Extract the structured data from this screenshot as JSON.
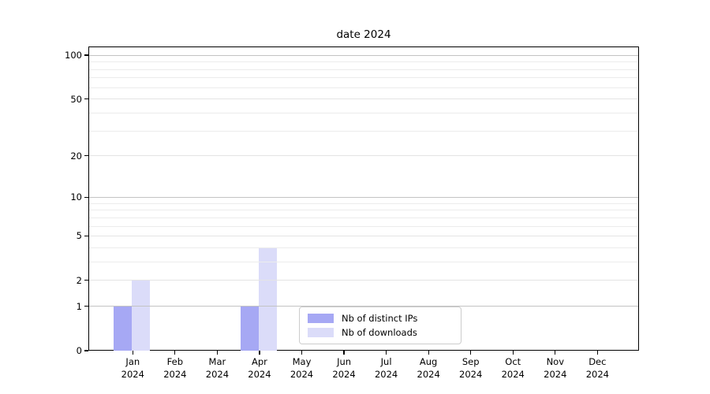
{
  "title": "date 2024",
  "chart_data": {
    "type": "bar",
    "title": "date 2024",
    "categories": [
      "Jan 2024",
      "Feb 2024",
      "Mar 2024",
      "Apr 2024",
      "May 2024",
      "Jun 2024",
      "Jul 2024",
      "Aug 2024",
      "Sep 2024",
      "Oct 2024",
      "Nov 2024",
      "Dec 2024"
    ],
    "series": [
      {
        "name": "Nb of distinct IPs",
        "color": "#a6a8f4",
        "values": [
          1,
          0,
          0,
          1,
          0,
          0,
          0,
          0,
          0,
          0,
          0,
          0
        ]
      },
      {
        "name": "Nb of downloads",
        "color": "#dbdcf9",
        "values": [
          2,
          0,
          0,
          4,
          0,
          0,
          0,
          0,
          0,
          0,
          0,
          0
        ]
      }
    ],
    "scale": "log1p",
    "ylim": [
      0,
      113
    ],
    "y_ticks": [
      0,
      1,
      2,
      5,
      10,
      20,
      50,
      100
    ],
    "y_minor_ticks": [
      3,
      4,
      6,
      7,
      8,
      9,
      30,
      40,
      60,
      70,
      80,
      90
    ],
    "grid": "on",
    "legend_position": "lower center",
    "colors": {
      "axis": "#000000",
      "grid_major": "#c3c3c3",
      "grid_minor": "#ececec",
      "background": "#ffffff"
    }
  }
}
